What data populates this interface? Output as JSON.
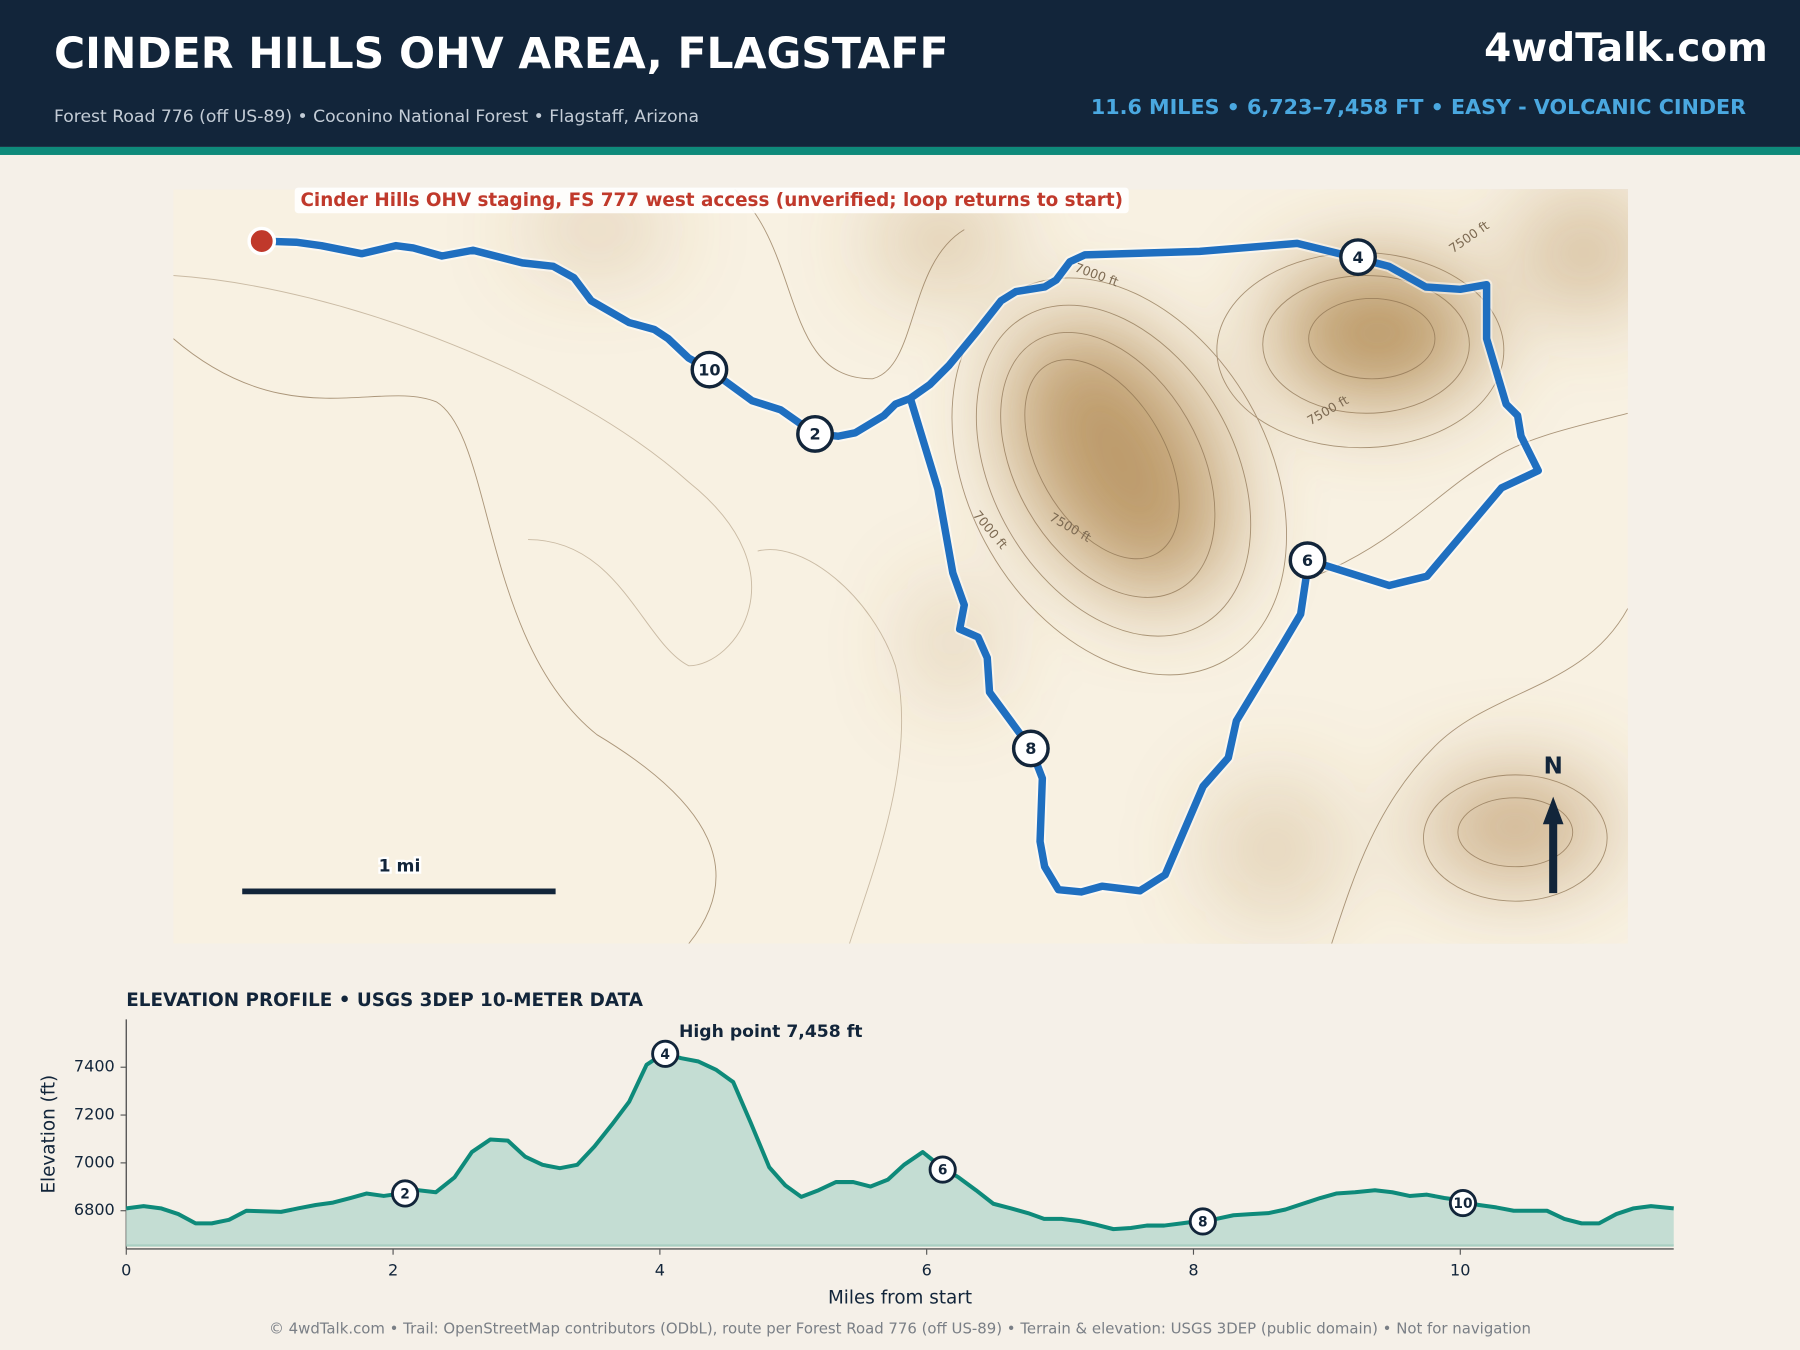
{
  "header": {
    "title": "CINDER HILLS OHV AREA, FLAGSTAFF",
    "subtitle": "Forest Road 776 (off US-89)  •  Coconino National Forest  •  Flagstaff, Arizona",
    "site": "4wdTalk.com",
    "stats": "11.6 MILES  •  6,723–7,458 FT  •  EASY - VOLCANIC CINDER"
  },
  "map": {
    "start_note": "Cinder Hills OHV staging, FS 777 west access (unverified; loop returns to start)",
    "mile_markers": [
      10,
      2,
      4,
      6,
      8
    ],
    "contour_labels": [
      "7000 ft",
      "7500 ft",
      "7000 ft",
      "7500 ft",
      "7500 ft"
    ],
    "scale_label": "1 mi",
    "north_label": "N"
  },
  "chart_data": {
    "type": "area",
    "title": "ELEVATION PROFILE  •  USGS 3DEP 10-METER DATA",
    "xlabel": "Miles from start",
    "ylabel": "Elevation (ft)",
    "color": "#0e8a7a",
    "x": [
      0,
      0.13,
      0.26,
      0.39,
      0.52,
      0.64,
      0.77,
      0.9,
      1.16,
      1.29,
      1.42,
      1.55,
      1.68,
      1.8,
      1.93,
      2.06,
      2.19,
      2.32,
      2.46,
      2.59,
      2.73,
      2.86,
      2.99,
      3.12,
      3.25,
      3.38,
      3.51,
      3.64,
      3.77,
      3.9,
      4.03,
      4.16,
      4.29,
      4.42,
      4.55,
      4.68,
      4.82,
      4.94,
      5.06,
      5.19,
      5.32,
      5.45,
      5.58,
      5.71,
      5.83,
      5.97,
      6.1,
      6.24,
      6.37,
      6.5,
      6.63,
      6.76,
      6.88,
      7.01,
      7.14,
      7.27,
      7.4,
      7.53,
      7.65,
      7.78,
      7.91,
      8.04,
      8.17,
      8.3,
      8.43,
      8.56,
      8.69,
      8.82,
      8.95,
      9.07,
      9.21,
      9.36,
      9.49,
      9.62,
      9.75,
      9.88,
      10.01,
      10.14,
      10.27,
      10.4,
      10.52,
      10.65,
      10.78,
      10.91,
      11.04,
      11.17,
      11.3,
      11.43,
      11.6
    ],
    "values": [
      6810,
      6819,
      6810,
      6786,
      6747,
      6747,
      6762,
      6800,
      6795,
      6810,
      6824,
      6834,
      6853,
      6872,
      6862,
      6872,
      6886,
      6877,
      6939,
      7045,
      7098,
      7093,
      7026,
      6992,
      6978,
      6992,
      7069,
      7160,
      7256,
      7410,
      7458,
      7438,
      7424,
      7390,
      7338,
      7170,
      6982,
      6906,
      6858,
      6886,
      6920,
      6920,
      6901,
      6930,
      6992,
      7045,
      6987,
      6939,
      6886,
      6829,
      6810,
      6790,
      6766,
      6766,
      6757,
      6742,
      6723,
      6728,
      6738,
      6738,
      6747,
      6757,
      6766,
      6781,
      6786,
      6790,
      6805,
      6829,
      6853,
      6872,
      6877,
      6886,
      6877,
      6862,
      6867,
      6853,
      6843,
      6824,
      6814,
      6800,
      6800,
      6800,
      6766,
      6747,
      6747,
      6786,
      6810,
      6819,
      6810
    ],
    "xlim": [
      0,
      11.6
    ],
    "ylim": [
      6640,
      7600
    ],
    "xticks": [
      0,
      2,
      4,
      6,
      8,
      10
    ],
    "yticks": [
      6800,
      7000,
      7200,
      7400
    ],
    "annotation": "High point 7,458 ft",
    "markers": {
      "labels": [
        2,
        4,
        6,
        8,
        10
      ],
      "x": [
        2.09,
        4.04,
        6.12,
        8.07,
        10.02
      ],
      "y": [
        6872,
        7456,
        6972,
        6755,
        6832
      ]
    }
  }
}
